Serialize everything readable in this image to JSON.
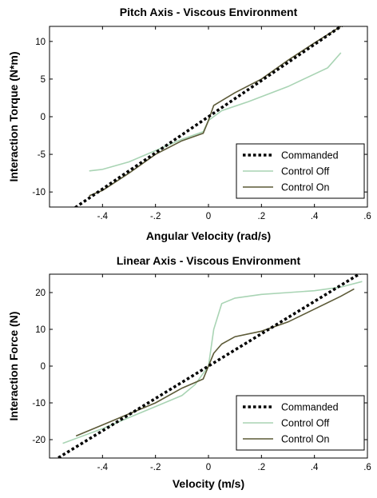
{
  "chart_data": [
    {
      "type": "line",
      "title": "Pitch Axis - Viscous Environment",
      "xlabel": "Angular Velocity (rad/s)",
      "ylabel": "Interaction Torque (N*m)",
      "xlim": [
        -0.6,
        0.6
      ],
      "ylim": [
        -12,
        12
      ],
      "xticks": [
        -0.4,
        -0.2,
        0,
        0.2,
        0.4,
        0.6
      ],
      "yticks": [
        -10,
        -5,
        0,
        5,
        10
      ],
      "grid": false,
      "legend_position": "bottom-right",
      "series": [
        {
          "name": "Commanded",
          "style": "dotted",
          "color": "#000000",
          "x": [
            -0.6,
            0.6
          ],
          "y": [
            -14.4,
            14.4
          ]
        },
        {
          "name": "Control Off",
          "style": "solid",
          "color": "#a9d4b4",
          "x": [
            -0.45,
            -0.4,
            -0.3,
            -0.2,
            -0.1,
            -0.02,
            0.0,
            0.05,
            0.15,
            0.3,
            0.45,
            0.5
          ],
          "y": [
            -7.2,
            -7.0,
            -6.0,
            -4.5,
            -3.0,
            -2.0,
            -0.5,
            0.8,
            2.0,
            4.0,
            6.5,
            8.5
          ]
        },
        {
          "name": "Control On",
          "style": "solid",
          "color": "#5c5a37",
          "x": [
            -0.45,
            -0.4,
            -0.3,
            -0.2,
            -0.1,
            -0.02,
            0.0,
            0.02,
            0.1,
            0.2,
            0.3,
            0.4,
            0.5
          ],
          "y": [
            -10.5,
            -9.8,
            -7.5,
            -5.0,
            -3.2,
            -2.2,
            -0.5,
            1.5,
            3.2,
            5.0,
            7.5,
            9.8,
            12.0
          ]
        }
      ]
    },
    {
      "type": "line",
      "title": "Linear Axis - Viscous Environment",
      "xlabel": "Velocity (m/s)",
      "ylabel": "Interaction Force (N)",
      "xlim": [
        -0.6,
        0.6
      ],
      "ylim": [
        -25,
        25
      ],
      "xticks": [
        -0.4,
        -0.2,
        0,
        0.2,
        0.4,
        0.6
      ],
      "yticks": [
        -20,
        -10,
        0,
        10,
        20
      ],
      "grid": false,
      "legend_position": "bottom-right",
      "series": [
        {
          "name": "Commanded",
          "style": "dotted",
          "color": "#000000",
          "x": [
            -0.6,
            0.6
          ],
          "y": [
            -26.4,
            26.4
          ]
        },
        {
          "name": "Control Off",
          "style": "solid",
          "color": "#a9d4b4",
          "x": [
            -0.55,
            -0.4,
            -0.3,
            -0.2,
            -0.1,
            -0.05,
            0.0,
            0.02,
            0.05,
            0.1,
            0.2,
            0.3,
            0.4,
            0.5,
            0.58
          ],
          "y": [
            -21.0,
            -17.0,
            -14.0,
            -11.0,
            -8.0,
            -5.0,
            0.0,
            10.0,
            17.0,
            18.5,
            19.5,
            20.0,
            20.5,
            21.5,
            23.0
          ]
        },
        {
          "name": "Control On",
          "style": "solid",
          "color": "#5c5a37",
          "x": [
            -0.5,
            -0.4,
            -0.3,
            -0.2,
            -0.1,
            -0.02,
            0.0,
            0.02,
            0.05,
            0.1,
            0.2,
            0.3,
            0.4,
            0.5,
            0.55
          ],
          "y": [
            -19.0,
            -16.0,
            -13.0,
            -10.0,
            -6.0,
            -3.5,
            0.0,
            3.5,
            6.0,
            8.0,
            9.5,
            12.0,
            15.5,
            19.0,
            21.0
          ]
        }
      ]
    }
  ]
}
